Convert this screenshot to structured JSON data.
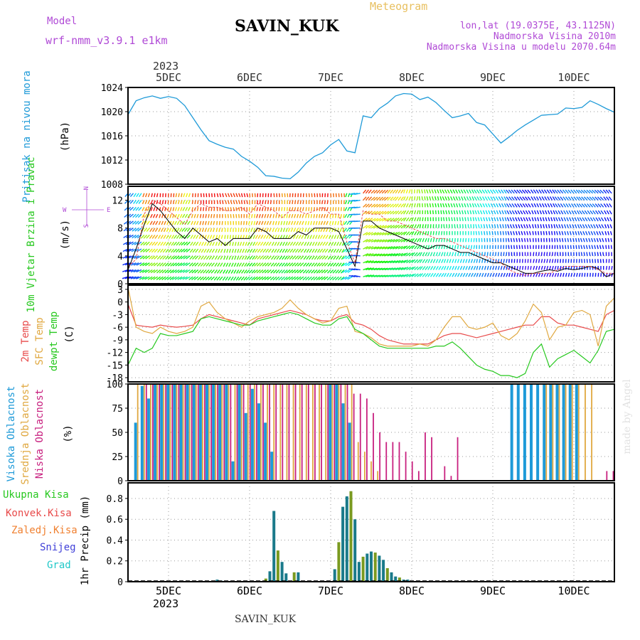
{
  "header": {
    "model_label": "Model",
    "model_name": "wrf-nmm_v3.9.1 e1km",
    "station": "SAVIN_KUK",
    "product": "Meteogram",
    "lonlat": "lon,lat (19.0375E, 43.1125N)",
    "elevation": "Nadmorska Visina 2010m",
    "model_elevation": "Nadmorska Visina u modelu 2070.64m",
    "year": "2023",
    "footer_station": "SAVIN_KUK",
    "watermark": "made by Angel"
  },
  "colors": {
    "title_purple": "#b04ad6",
    "meteogram_orange": "#e8c060",
    "pressure": "#1e9ad8",
    "temp2m": "#e84a4a",
    "sfc": "#e0a840",
    "dewpt": "#27c81f",
    "high_cloud": "#1e9ad8",
    "mid_cloud": "#e0a840",
    "low_cloud": "#c8207f",
    "total_precip": "#27c81f",
    "conv_precip": "#e84a4a",
    "frozen_precip": "#f08030",
    "snow": "#4040d8",
    "graupel": "#20c8c8"
  },
  "chart_data": [
    {
      "type": "line",
      "ylabel": "Pritisak na nivou mora",
      "unit": "(hPa)",
      "ylim": [
        1008,
        1024
      ],
      "yticks": [
        1008,
        1012,
        1016,
        1020,
        1024
      ],
      "xticks": [
        "5DEC",
        "6DEC",
        "7DEC",
        "8DEC",
        "9DEC",
        "10DEC"
      ],
      "grid": true,
      "x": [
        4.5,
        4.6,
        4.7,
        4.8,
        4.9,
        5.0,
        5.1,
        5.2,
        5.3,
        5.4,
        5.5,
        5.6,
        5.7,
        5.8,
        5.9,
        6.0,
        6.1,
        6.2,
        6.3,
        6.4,
        6.5,
        6.6,
        6.7,
        6.8,
        6.9,
        7.0,
        7.1,
        7.2,
        7.3,
        7.4,
        7.5,
        7.6,
        7.7,
        7.8,
        7.9,
        8.0,
        8.1,
        8.2,
        8.3,
        8.4,
        8.5,
        8.6,
        8.7,
        8.8,
        8.9,
        9.0,
        9.1,
        9.2,
        9.3,
        9.4,
        9.5,
        9.6,
        9.7,
        9.8,
        9.9,
        10.0,
        10.1,
        10.2,
        10.3,
        10.4,
        10.5
      ],
      "series": [
        {
          "values": [
            1019.5,
            1021.8,
            1022.3,
            1022.6,
            1022.2,
            1022.5,
            1022.2,
            1021.0,
            1019.0,
            1017.0,
            1015.2,
            1014.6,
            1014.1,
            1013.8,
            1012.6,
            1011.8,
            1010.8,
            1009.4,
            1009.3,
            1009.0,
            1008.9,
            1010.0,
            1011.5,
            1012.6,
            1013.2,
            1014.5,
            1015.4,
            1013.5,
            1013.2,
            1019.3,
            1019.0,
            1020.5,
            1021.4,
            1022.6,
            1023.0,
            1022.9,
            1022.0,
            1022.4,
            1021.5,
            1020.2,
            1019.0,
            1019.3,
            1019.7,
            1018.2,
            1017.8,
            1016.3,
            1014.8,
            1015.8,
            1016.9,
            1017.8,
            1018.6,
            1019.4,
            1019.5,
            1019.6,
            1020.6,
            1020.5,
            1020.7,
            1021.8,
            1021.2,
            1020.5,
            1019.9
          ]
        }
      ]
    },
    {
      "type": "line",
      "ylabel": "10m Vjetar Brzina i Pravac",
      "unit": "(m/s)",
      "ylim": [
        0,
        14
      ],
      "yticks": [
        0,
        4,
        8,
        12
      ],
      "compass": {
        "north": "N",
        "west": "W",
        "east": "E",
        "south": "S"
      },
      "grid": true,
      "x": [
        4.5,
        4.6,
        4.7,
        4.8,
        4.9,
        5.0,
        5.1,
        5.2,
        5.3,
        5.4,
        5.5,
        5.6,
        5.7,
        5.8,
        5.9,
        6.0,
        6.1,
        6.2,
        6.3,
        6.4,
        6.5,
        6.6,
        6.7,
        6.8,
        6.9,
        7.0,
        7.1,
        7.2,
        7.3,
        7.4,
        7.5,
        7.6,
        7.7,
        7.8,
        7.9,
        8.0,
        8.1,
        8.2,
        8.3,
        8.4,
        8.5,
        8.6,
        8.7,
        8.8,
        8.9,
        9.0,
        9.1,
        9.2,
        9.3,
        9.4,
        9.5,
        9.6,
        9.7,
        9.8,
        9.9,
        10.0,
        10.1,
        10.2,
        10.3,
        10.4,
        10.5
      ],
      "series": [
        {
          "values": [
            2.0,
            5.0,
            8.5,
            11.5,
            10.5,
            9.0,
            7.5,
            6.5,
            8.0,
            7.0,
            6.0,
            6.5,
            5.5,
            6.5,
            6.5,
            6.5,
            8.0,
            7.5,
            6.5,
            6.5,
            6.5,
            7.5,
            7.0,
            8.0,
            8.0,
            8.0,
            7.5,
            5.0,
            2.5,
            9.0,
            9.0,
            8.0,
            7.5,
            7.0,
            6.5,
            6.0,
            5.5,
            5.0,
            5.5,
            5.5,
            5.0,
            4.5,
            4.5,
            4.0,
            3.5,
            3.0,
            3.0,
            2.5,
            2.0,
            1.5,
            1.5,
            1.8,
            2.0,
            1.8,
            2.2,
            2.0,
            2.2,
            2.5,
            2.2,
            1.0,
            1.5
          ]
        },
        {
          "values": [
            2.5,
            3.5,
            10.0,
            12.0,
            11.5,
            10.5,
            9.5,
            8.5,
            10.5,
            11.5,
            11.0,
            11.0,
            10.5,
            10.5,
            11.0,
            10.0,
            11.5,
            11.0,
            10.5,
            9.5,
            10.5,
            10.5,
            10.0,
            10.5,
            11.0,
            10.0,
            10.0,
            6.0,
            3.0,
            10.5,
            10.0,
            10.0,
            9.0,
            9.0,
            8.5,
            8.0,
            7.5,
            7.0,
            6.5,
            6.5,
            6.0,
            5.5,
            5.0,
            4.5,
            4.0,
            3.5,
            3.0,
            2.0,
            1.5,
            1.2,
            1.5,
            1.5,
            1.5,
            2.0,
            2.5,
            2.5,
            2.5,
            2.5,
            2.0,
            1.5,
            1.5
          ]
        }
      ]
    },
    {
      "type": "line",
      "ylabel": [
        "2m Temp",
        "SFC Temp",
        "dewpt Temp"
      ],
      "unit": "(C)",
      "ylim": [
        -19,
        4
      ],
      "yticks": [
        -18,
        -15,
        -12,
        -9,
        -6,
        -3,
        0,
        3
      ],
      "grid": true,
      "x": [
        4.5,
        4.6,
        4.7,
        4.8,
        4.9,
        5.0,
        5.1,
        5.2,
        5.3,
        5.4,
        5.5,
        5.6,
        5.7,
        5.8,
        5.9,
        6.0,
        6.1,
        6.2,
        6.3,
        6.4,
        6.5,
        6.6,
        6.7,
        6.8,
        6.9,
        7.0,
        7.1,
        7.2,
        7.3,
        7.4,
        7.5,
        7.6,
        7.7,
        7.8,
        7.9,
        8.0,
        8.1,
        8.2,
        8.3,
        8.4,
        8.5,
        8.6,
        8.7,
        8.8,
        8.9,
        9.0,
        9.1,
        9.2,
        9.3,
        9.4,
        9.5,
        9.6,
        9.7,
        9.8,
        9.9,
        10.0,
        10.1,
        10.2,
        10.3,
        10.4,
        10.5
      ],
      "series": [
        {
          "values": [
            -0.5,
            -5.5,
            -5.8,
            -6.0,
            -5.5,
            -5.8,
            -6.0,
            -5.8,
            -5.5,
            -4.0,
            -3.0,
            -3.5,
            -4.0,
            -4.5,
            -5.0,
            -5.5,
            -4.0,
            -3.5,
            -3.0,
            -2.5,
            -2.0,
            -2.5,
            -3.0,
            -4.0,
            -4.5,
            -4.5,
            -3.5,
            -3.0,
            -5.0,
            -5.5,
            -6.5,
            -8.0,
            -9.0,
            -9.5,
            -10.0,
            -10.0,
            -10.0,
            -10.0,
            -9.0,
            -8.0,
            -7.5,
            -7.5,
            -8.0,
            -8.5,
            -8.0,
            -7.5,
            -7.0,
            -6.5,
            -6.0,
            -5.5,
            -5.5,
            -3.5,
            -3.5,
            -5.0,
            -5.5,
            -5.5,
            -6.0,
            -6.5,
            -7.0,
            -3.0,
            -2.0
          ]
        },
        {
          "values": [
            3.5,
            -6.0,
            -7.0,
            -7.5,
            -6.0,
            -7.0,
            -7.5,
            -7.0,
            -6.0,
            -1.0,
            0.0,
            -2.5,
            -4.0,
            -5.0,
            -6.0,
            -4.5,
            -3.5,
            -3.0,
            -2.5,
            -1.5,
            0.5,
            -1.5,
            -3.0,
            -4.0,
            -5.0,
            -4.5,
            -1.5,
            -1.0,
            -7.0,
            -7.5,
            -8.5,
            -10.0,
            -10.5,
            -10.5,
            -10.5,
            -10.5,
            -10.0,
            -10.5,
            -9.0,
            -6.0,
            -3.5,
            -3.5,
            -6.0,
            -6.5,
            -6.0,
            -5.0,
            -8.0,
            -9.0,
            -7.5,
            -4.5,
            -0.5,
            -2.5,
            -9.0,
            -6.0,
            -5.5,
            -2.5,
            -2.0,
            -3.0,
            -10.5,
            -1.0,
            1.0
          ]
        },
        {
          "values": [
            -15.0,
            -11.0,
            -12.0,
            -11.0,
            -7.5,
            -8.0,
            -8.0,
            -7.5,
            -7.0,
            -4.0,
            -3.5,
            -4.0,
            -4.5,
            -5.0,
            -5.5,
            -5.5,
            -4.5,
            -4.0,
            -3.5,
            -3.0,
            -2.5,
            -3.0,
            -4.0,
            -5.0,
            -5.5,
            -5.5,
            -4.0,
            -3.5,
            -6.5,
            -7.5,
            -9.0,
            -10.5,
            -11.0,
            -11.0,
            -11.0,
            -11.0,
            -11.0,
            -11.0,
            -10.5,
            -10.5,
            -9.5,
            -11.0,
            -13.0,
            -15.0,
            -16.0,
            -16.5,
            -17.5,
            -17.5,
            -18.0,
            -17.0,
            -12.0,
            -10.0,
            -15.5,
            -13.5,
            -12.5,
            -11.5,
            -13.0,
            -14.5,
            -11.5,
            -7.0,
            -6.5
          ]
        }
      ]
    },
    {
      "type": "bar",
      "ylabel": [
        "Visoka Oblacnost",
        "Srednja Oblacnost",
        "Niska Oblacnost"
      ],
      "unit": "(%)",
      "ylim": [
        0,
        100
      ],
      "yticks": [
        0,
        25,
        50,
        75,
        100
      ],
      "grid": true,
      "x": [
        4.62,
        4.7,
        4.78,
        4.86,
        4.94,
        5.02,
        5.1,
        5.18,
        5.26,
        5.34,
        5.42,
        5.5,
        5.58,
        5.66,
        5.74,
        5.82,
        5.9,
        5.98,
        6.06,
        6.14,
        6.22,
        6.3,
        6.38,
        6.46,
        6.54,
        6.62,
        6.7,
        6.78,
        6.86,
        6.94,
        7.02,
        7.1,
        7.18,
        7.26,
        7.34,
        7.42,
        7.5,
        7.58,
        7.66,
        7.74,
        7.82,
        7.9,
        7.98,
        8.06,
        8.14,
        8.22,
        8.3,
        8.38,
        8.46,
        8.54,
        8.62,
        8.7,
        8.78,
        8.86,
        8.94,
        9.02,
        9.1,
        9.18,
        9.26,
        9.34,
        9.42,
        9.5,
        9.58,
        9.66,
        9.74,
        9.82,
        9.9,
        9.98,
        10.06,
        10.14,
        10.22,
        10.3,
        10.38,
        10.46
      ],
      "series": [
        {
          "name": "Visoka Oblacnost",
          "values": [
            60,
            98,
            85,
            100,
            100,
            100,
            100,
            100,
            100,
            100,
            100,
            100,
            100,
            100,
            100,
            20,
            100,
            70,
            95,
            80,
            60,
            30,
            0,
            0,
            0,
            0,
            0,
            0,
            0,
            0,
            100,
            100,
            80,
            60,
            0,
            0,
            0,
            0,
            0,
            0,
            0,
            0,
            0,
            0,
            0,
            0,
            0,
            0,
            0,
            0,
            0,
            0,
            0,
            0,
            0,
            0,
            0,
            0,
            100,
            100,
            100,
            100,
            100,
            100,
            100,
            100,
            100,
            100,
            100,
            0,
            0,
            0,
            0,
            0
          ]
        },
        {
          "name": "Srednja Oblacnost",
          "values": [
            100,
            100,
            100,
            100,
            100,
            100,
            100,
            100,
            100,
            100,
            100,
            100,
            100,
            100,
            100,
            100,
            100,
            100,
            100,
            100,
            100,
            100,
            100,
            100,
            100,
            100,
            100,
            100,
            100,
            100,
            100,
            100,
            100,
            100,
            40,
            30,
            20,
            10,
            0,
            0,
            0,
            0,
            0,
            0,
            0,
            0,
            0,
            0,
            0,
            0,
            0,
            0,
            0,
            0,
            0,
            0,
            0,
            0,
            0,
            0,
            0,
            0,
            0,
            100,
            100,
            100,
            100,
            100,
            100,
            100,
            100,
            0,
            0,
            0
          ]
        },
        {
          "name": "Niska Oblacnost",
          "values": [
            0,
            100,
            100,
            100,
            100,
            100,
            100,
            100,
            100,
            100,
            100,
            100,
            100,
            100,
            100,
            100,
            100,
            100,
            100,
            100,
            100,
            100,
            100,
            100,
            100,
            100,
            100,
            100,
            100,
            100,
            100,
            100,
            100,
            90,
            90,
            85,
            70,
            50,
            40,
            40,
            40,
            30,
            20,
            10,
            50,
            45,
            0,
            15,
            5,
            45,
            0,
            0,
            0,
            0,
            0,
            0,
            0,
            0,
            0,
            0,
            0,
            0,
            0,
            0,
            0,
            0,
            0,
            0,
            0,
            0,
            0,
            0,
            10,
            10
          ]
        }
      ]
    },
    {
      "type": "bar",
      "ylabel": "1hr Precip (mm)",
      "legend": [
        "Ukupna Kisa",
        "Konvek.Kisa",
        "Zaledj.Kisa",
        "Snijeg",
        "Grad"
      ],
      "ylim": [
        0,
        0.95
      ],
      "yticks": [
        0,
        0.2,
        0.4,
        0.6,
        0.8
      ],
      "xticks": [
        "5DEC",
        "6DEC",
        "7DEC",
        "8DEC",
        "9DEC",
        "10DEC"
      ],
      "year_label": "2023",
      "grid": true,
      "bars": [
        {
          "x": 5.55,
          "value": 0.01
        },
        {
          "x": 5.6,
          "value": 0.02
        },
        {
          "x": 5.65,
          "value": 0.01
        },
        {
          "x": 6.2,
          "value": 0.03
        },
        {
          "x": 6.25,
          "value": 0.1
        },
        {
          "x": 6.3,
          "value": 0.68
        },
        {
          "x": 6.35,
          "value": 0.3
        },
        {
          "x": 6.4,
          "value": 0.19
        },
        {
          "x": 6.45,
          "value": 0.08
        },
        {
          "x": 6.55,
          "value": 0.09
        },
        {
          "x": 6.6,
          "value": 0.09
        },
        {
          "x": 7.05,
          "value": 0.12
        },
        {
          "x": 7.1,
          "value": 0.38
        },
        {
          "x": 7.15,
          "value": 0.72
        },
        {
          "x": 7.2,
          "value": 0.82
        },
        {
          "x": 7.25,
          "value": 0.87
        },
        {
          "x": 7.3,
          "value": 0.6
        },
        {
          "x": 7.35,
          "value": 0.19
        },
        {
          "x": 7.4,
          "value": 0.24
        },
        {
          "x": 7.45,
          "value": 0.27
        },
        {
          "x": 7.5,
          "value": 0.29
        },
        {
          "x": 7.55,
          "value": 0.28
        },
        {
          "x": 7.6,
          "value": 0.25
        },
        {
          "x": 7.65,
          "value": 0.21
        },
        {
          "x": 7.7,
          "value": 0.13
        },
        {
          "x": 7.75,
          "value": 0.09
        },
        {
          "x": 7.8,
          "value": 0.05
        },
        {
          "x": 7.85,
          "value": 0.04
        },
        {
          "x": 7.9,
          "value": 0.02
        },
        {
          "x": 7.95,
          "value": 0.02
        },
        {
          "x": 8.0,
          "value": 0.01
        },
        {
          "x": 8.15,
          "value": 0.01
        }
      ]
    }
  ]
}
